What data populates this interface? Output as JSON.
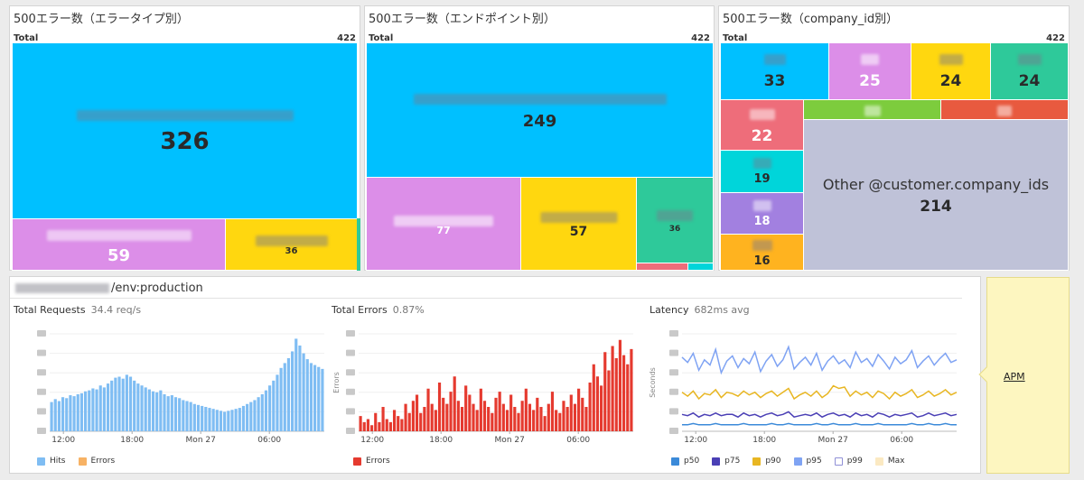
{
  "treemaps": [
    {
      "title": "500エラー数（エラータイプ別）",
      "total_label": "Total",
      "total_value": "422",
      "cells": [
        {
          "value": "326",
          "color": "#00c0ff"
        },
        {
          "value": "59",
          "color": "#dc8ee8"
        },
        {
          "value": "36",
          "color": "#ffd70f"
        },
        {
          "value": "",
          "color": "#2ec99a"
        }
      ]
    },
    {
      "title": "500エラー数（エンドポイント別）",
      "total_label": "Total",
      "total_value": "422",
      "cells": [
        {
          "value": "249",
          "color": "#00c0ff"
        },
        {
          "value": "77",
          "color": "#dc8ee8"
        },
        {
          "value": "57",
          "color": "#ffd70f"
        },
        {
          "value": "36",
          "color": "#2ec99a"
        },
        {
          "value": "",
          "color": "#ee6d7a"
        },
        {
          "value": "",
          "color": "#00d5da"
        }
      ]
    },
    {
      "title": "500エラー数（company_id別）",
      "total_label": "Total",
      "total_value": "422",
      "cells": [
        {
          "value": "33",
          "color": "#00c0ff"
        },
        {
          "value": "25",
          "color": "#dc8ee8"
        },
        {
          "value": "24",
          "color": "#ffd70f"
        },
        {
          "value": "24",
          "color": "#2ec99a"
        },
        {
          "value": "",
          "color": "#7dcc3d"
        },
        {
          "value": "",
          "color": "#e85a3f"
        },
        {
          "value": "22",
          "color": "#ee6d7a"
        },
        {
          "value": "19",
          "color": "#00d5da"
        },
        {
          "value": "18",
          "color": "#a280e0"
        },
        {
          "value": "16",
          "color": "#ffb31f"
        },
        {
          "value": "214",
          "label": "Other @customer.company_ids",
          "color": "#bfc2d8"
        }
      ]
    }
  ],
  "service": {
    "title_suffix": "/env:production"
  },
  "charts": [
    {
      "title": "Total Requests",
      "subtitle": "34.4 req/s",
      "legend": [
        {
          "label": "Hits",
          "color": "#7fbdf3"
        },
        {
          "label": "Errors",
          "color": "#f7b264"
        }
      ]
    },
    {
      "title": "Total Errors",
      "subtitle": "0.87%",
      "ylabel": "Errors",
      "legend": [
        {
          "label": "Errors",
          "color": "#e53a2f"
        }
      ]
    },
    {
      "title": "Latency",
      "subtitle": "682ms avg",
      "ylabel": "Seconds",
      "legend": [
        {
          "label": "p50",
          "color": "#3b8ad9"
        },
        {
          "label": "p75",
          "color": "#4a3fb5"
        },
        {
          "label": "p90",
          "color": "#e8b622"
        },
        {
          "label": "p95",
          "color": "#7fa3f3"
        },
        {
          "label": "p99",
          "color": "#ffffff"
        },
        {
          "label": "Max",
          "color": "#fbe9c2"
        }
      ]
    }
  ],
  "chart_data": [
    {
      "type": "bar",
      "x_ticks": [
        "12:00",
        "18:00",
        "Mon 27",
        "06:00"
      ],
      "series": [
        {
          "name": "Hits",
          "values": [
            30,
            33,
            31,
            35,
            34,
            37,
            36,
            38,
            39,
            41,
            42,
            44,
            43,
            47,
            45,
            49,
            52,
            55,
            56,
            54,
            58,
            56,
            52,
            49,
            47,
            45,
            43,
            41,
            40,
            42,
            38,
            36,
            37,
            35,
            34,
            32,
            31,
            30,
            28,
            27,
            26,
            25,
            24,
            23,
            22,
            21,
            20,
            21,
            22,
            23,
            24,
            26,
            28,
            30,
            32,
            35,
            38,
            42,
            47,
            52,
            58,
            65,
            70,
            75,
            82,
            95,
            88,
            80,
            74,
            70,
            68,
            66,
            64
          ]
        }
      ]
    },
    {
      "type": "bar",
      "x_ticks": [
        "12:00",
        "18:00",
        "Mon 27",
        "06:00"
      ],
      "series": [
        {
          "name": "Errors",
          "values": [
            5,
            3,
            4,
            2,
            6,
            3,
            8,
            4,
            3,
            7,
            5,
            4,
            9,
            6,
            10,
            12,
            6,
            8,
            14,
            9,
            7,
            16,
            11,
            9,
            13,
            18,
            10,
            8,
            15,
            12,
            9,
            7,
            14,
            10,
            8,
            6,
            11,
            13,
            9,
            7,
            12,
            8,
            6,
            10,
            14,
            9,
            7,
            11,
            8,
            5,
            9,
            13,
            7,
            6,
            10,
            8,
            12,
            9,
            14,
            11,
            8,
            16,
            22,
            18,
            15,
            26,
            20,
            28,
            24,
            30,
            25,
            22,
            27
          ]
        }
      ]
    },
    {
      "type": "line",
      "x_ticks": [
        "12:00",
        "18:00",
        "Mon 27",
        "06:00"
      ],
      "series": [
        {
          "name": "p95",
          "values": [
            0.82,
            0.78,
            0.85,
            0.72,
            0.8,
            0.76,
            0.88,
            0.7,
            0.79,
            0.83,
            0.74,
            0.81,
            0.77,
            0.86,
            0.71,
            0.79,
            0.84,
            0.75,
            0.8,
            0.9,
            0.73,
            0.78,
            0.82,
            0.76,
            0.85,
            0.72,
            0.79,
            0.83,
            0.77,
            0.8,
            0.74,
            0.86,
            0.78,
            0.81,
            0.75,
            0.84,
            0.79,
            0.73,
            0.82,
            0.77,
            0.8,
            0.87,
            0.74,
            0.79,
            0.83,
            0.76,
            0.81,
            0.85,
            0.78,
            0.8
          ]
        },
        {
          "name": "p90",
          "values": [
            0.55,
            0.52,
            0.56,
            0.5,
            0.54,
            0.53,
            0.57,
            0.51,
            0.55,
            0.54,
            0.52,
            0.56,
            0.53,
            0.55,
            0.51,
            0.54,
            0.56,
            0.52,
            0.55,
            0.58,
            0.5,
            0.53,
            0.55,
            0.52,
            0.56,
            0.51,
            0.54,
            0.6,
            0.58,
            0.59,
            0.52,
            0.56,
            0.53,
            0.55,
            0.51,
            0.56,
            0.54,
            0.5,
            0.55,
            0.52,
            0.54,
            0.57,
            0.51,
            0.53,
            0.56,
            0.52,
            0.54,
            0.57,
            0.53,
            0.55
          ]
        },
        {
          "name": "p75",
          "values": [
            0.38,
            0.37,
            0.39,
            0.36,
            0.38,
            0.37,
            0.39,
            0.37,
            0.38,
            0.38,
            0.36,
            0.39,
            0.37,
            0.38,
            0.36,
            0.38,
            0.39,
            0.37,
            0.38,
            0.4,
            0.36,
            0.37,
            0.38,
            0.37,
            0.39,
            0.36,
            0.38,
            0.39,
            0.37,
            0.38,
            0.36,
            0.39,
            0.37,
            0.38,
            0.36,
            0.39,
            0.38,
            0.36,
            0.38,
            0.37,
            0.38,
            0.39,
            0.36,
            0.37,
            0.39,
            0.37,
            0.38,
            0.39,
            0.37,
            0.38
          ]
        },
        {
          "name": "p50",
          "values": [
            0.3,
            0.3,
            0.31,
            0.3,
            0.3,
            0.3,
            0.31,
            0.3,
            0.3,
            0.3,
            0.3,
            0.31,
            0.3,
            0.3,
            0.3,
            0.3,
            0.31,
            0.3,
            0.3,
            0.31,
            0.3,
            0.3,
            0.3,
            0.3,
            0.31,
            0.3,
            0.3,
            0.31,
            0.3,
            0.3,
            0.3,
            0.31,
            0.3,
            0.3,
            0.3,
            0.31,
            0.3,
            0.3,
            0.3,
            0.3,
            0.3,
            0.31,
            0.3,
            0.3,
            0.31,
            0.3,
            0.3,
            0.31,
            0.3,
            0.3
          ]
        }
      ]
    }
  ],
  "apm": {
    "link_label": "APM"
  }
}
